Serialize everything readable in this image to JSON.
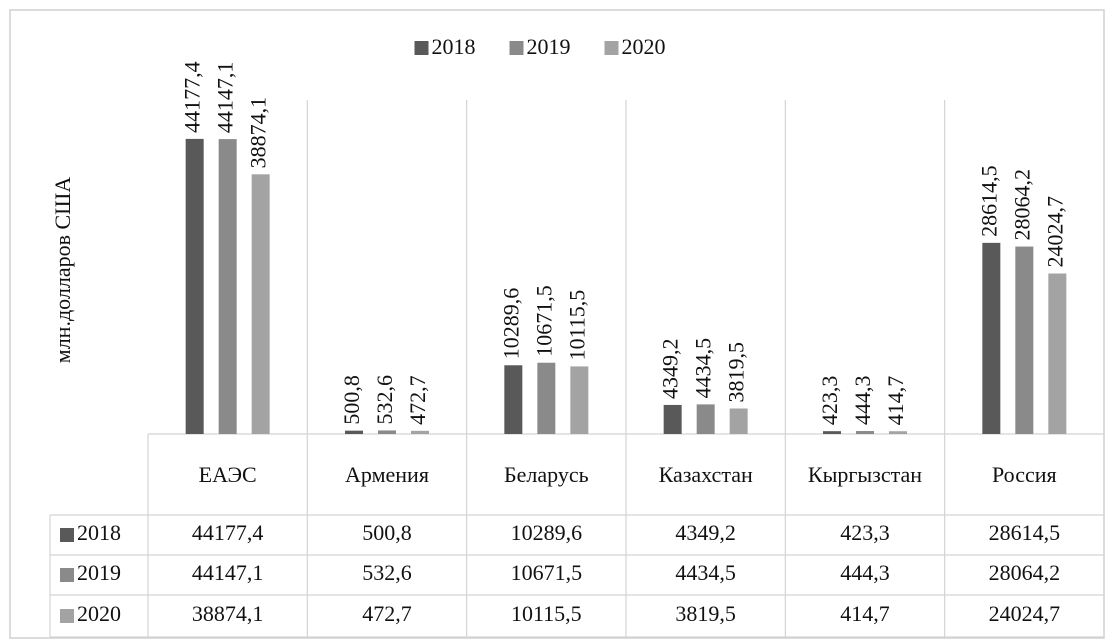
{
  "chart_data": {
    "type": "bar",
    "y_label": "млн.долларов США",
    "categories": [
      "ЕАЭС",
      "Армения",
      "Беларусь",
      "Казахстан",
      "Кыргызстан",
      "Россия"
    ],
    "series": [
      {
        "name": "2018",
        "color": "#595959",
        "values": [
          44177.4,
          500.8,
          10289.6,
          4349.2,
          423.3,
          28614.5
        ],
        "value_labels": [
          "44177,4",
          "500,8",
          "10289,6",
          "4349,2",
          "423,3",
          "28614,5"
        ]
      },
      {
        "name": "2019",
        "color": "#8a8a8a",
        "values": [
          44147.1,
          532.6,
          10671.5,
          4434.5,
          444.3,
          28064.2
        ],
        "value_labels": [
          "44147,1",
          "532,6",
          "10671,5",
          "4434,5",
          "444,3",
          "28064,2"
        ]
      },
      {
        "name": "2020",
        "color": "#a3a3a3",
        "values": [
          38874.1,
          472.7,
          10115.5,
          3819.5,
          414.7,
          24024.7
        ],
        "value_labels": [
          "38874,1",
          "472,7",
          "10115,5",
          "3819,5",
          "414,7",
          "24024,7"
        ]
      }
    ],
    "ylim": [
      0,
      50000
    ],
    "legend": "top"
  }
}
